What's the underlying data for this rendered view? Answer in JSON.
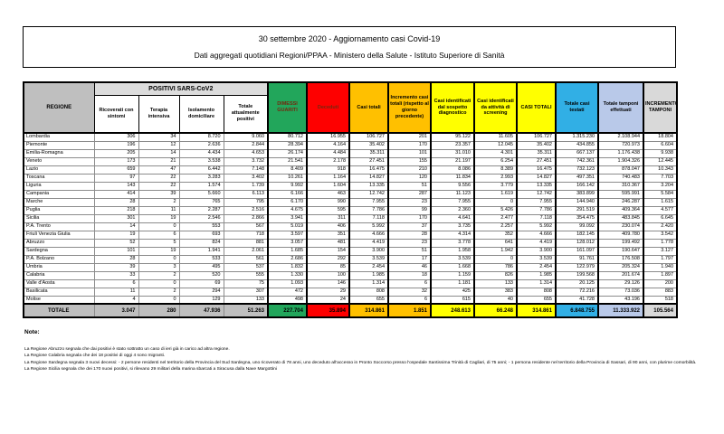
{
  "title": {
    "line1": "30 settembre 2020 - Aggiornamento casi Covid-19",
    "line2": "Dati aggregati quotidiani Regioni/PPAA - Ministero della Salute - Istituto Superiore di Sanità"
  },
  "colors": {
    "header-gray": "#BFBFBF",
    "band-gray": "#DCDCDC",
    "green": "#22A65B",
    "red": "#FE0000",
    "orange": "#FFC000",
    "yellow": "#FFFF00",
    "blue": "#31AFE5",
    "peri": "#B9C9E9",
    "lightgray": "#D9D9D9",
    "dark-red": "#73290F"
  },
  "table": {
    "columns": {
      "regione": "REGIONE",
      "group_positivi": "POSITIVI SARS-CoV2",
      "ricoverati": "Ricoverati con sintomi",
      "terapia": "Terapia intensiva",
      "isolamento": "Isolamento domiciliare",
      "attualmente_positivi": "Totale attualmente positivi",
      "dimessi": "DIMESSI GUARITI",
      "deceduti": "Deceduti",
      "casi_totali": "Casi totali",
      "incremento_casi": "Incremento casi totali (rispetto al giorno precedente)",
      "sospetto": "Casi identificati dal sospetto diagnostico",
      "screening": "Casi identificati da attività di screening",
      "casi_totali_2": "CASI TOTALI",
      "casi_testati": "Totale casi testati",
      "tamponi": "Totale tamponi effettuati",
      "incremento_tamponi": "INCREMENTO TAMPONI"
    },
    "rows": [
      {
        "regione": "Lombardia",
        "values": [
          "306",
          "34",
          "8.720",
          "9.060",
          "80.712",
          "16.955",
          "106.727",
          "201",
          "95.122",
          "11.605",
          "106.727",
          "1.315.230",
          "2.108.944",
          "18.804"
        ]
      },
      {
        "regione": "Piemonte",
        "values": [
          "196",
          "12",
          "2.636",
          "2.844",
          "28.394",
          "4.164",
          "35.402",
          "170",
          "23.357",
          "12.045",
          "35.402",
          "434.855",
          "720.973",
          "6.604"
        ]
      },
      {
        "regione": "Emilia-Romagna",
        "values": [
          "205",
          "14",
          "4.434",
          "4.653",
          "26.174",
          "4.484",
          "35.311",
          "101",
          "31.010",
          "4.301",
          "35.311",
          "667.137",
          "1.176.438",
          "9.938"
        ]
      },
      {
        "regione": "Veneto",
        "values": [
          "173",
          "21",
          "3.538",
          "3.732",
          "21.541",
          "2.178",
          "27.451",
          "155",
          "21.197",
          "6.254",
          "27.451",
          "742.361",
          "1.904.326",
          "12.445"
        ]
      },
      {
        "regione": "Lazio",
        "values": [
          "659",
          "47",
          "6.442",
          "7.148",
          "8.409",
          "918",
          "16.475",
          "210",
          "8.086",
          "8.389",
          "16.475",
          "732.123",
          "878.047",
          "10.343"
        ]
      },
      {
        "regione": "Toscana",
        "values": [
          "97",
          "22",
          "3.283",
          "3.402",
          "10.261",
          "1.164",
          "14.827",
          "120",
          "11.834",
          "2.993",
          "14.827",
          "497.351",
          "740.483",
          "7.703"
        ]
      },
      {
        "regione": "Liguria",
        "values": [
          "143",
          "22",
          "1.574",
          "1.739",
          "9.992",
          "1.604",
          "13.335",
          "51",
          "9.556",
          "3.779",
          "13.335",
          "166.142",
          "310.367",
          "3.204"
        ]
      },
      {
        "regione": "Campania",
        "values": [
          "414",
          "39",
          "5.660",
          "6.113",
          "6.166",
          "463",
          "12.742",
          "287",
          "11.123",
          "1.619",
          "12.742",
          "383.899",
          "595.991",
          "5.584"
        ]
      },
      {
        "regione": "Marche",
        "values": [
          "28",
          "2",
          "765",
          "795",
          "6.170",
          "990",
          "7.955",
          "23",
          "7.955",
          "0",
          "7.955",
          "144.940",
          "246.287",
          "1.615"
        ]
      },
      {
        "regione": "Puglia",
        "values": [
          "218",
          "11",
          "2.287",
          "2.516",
          "4.675",
          "595",
          "7.786",
          "99",
          "2.360",
          "5.426",
          "7.786",
          "291.519",
          "409.364",
          "4.577"
        ]
      },
      {
        "regione": "Sicilia",
        "values": [
          "301",
          "19",
          "2.546",
          "2.866",
          "3.941",
          "311",
          "7.118",
          "170",
          "4.641",
          "2.477",
          "7.118",
          "354.475",
          "483.845",
          "6.645"
        ]
      },
      {
        "regione": "P.A. Trento",
        "values": [
          "14",
          "0",
          "553",
          "567",
          "5.019",
          "406",
          "5.992",
          "37",
          "3.735",
          "2.257",
          "5.992",
          "99.092",
          "230.074",
          "2.420"
        ]
      },
      {
        "regione": "Friuli Venezia Giulia",
        "values": [
          "19",
          "6",
          "693",
          "718",
          "3.597",
          "351",
          "4.666",
          "28",
          "4.314",
          "352",
          "4.666",
          "182.145",
          "409.780",
          "3.542"
        ]
      },
      {
        "regione": "Abruzzo",
        "values": [
          "52",
          "5",
          "824",
          "881",
          "3.057",
          "481",
          "4.419",
          "23",
          "3.778",
          "641",
          "4.419",
          "128.012",
          "199.492",
          "1.778"
        ]
      },
      {
        "regione": "Sardegna",
        "values": [
          "101",
          "19",
          "1.941",
          "2.061",
          "1.685",
          "154",
          "3.900",
          "51",
          "1.958",
          "1.942",
          "3.900",
          "161.097",
          "190.647",
          "3.127"
        ]
      },
      {
        "regione": "P.A. Bolzano",
        "values": [
          "28",
          "0",
          "533",
          "561",
          "2.686",
          "292",
          "3.539",
          "17",
          "3.539",
          "0",
          "3.539",
          "91.761",
          "176.508",
          "1.797"
        ]
      },
      {
        "regione": "Umbria",
        "values": [
          "39",
          "3",
          "495",
          "537",
          "1.832",
          "85",
          "2.454",
          "46",
          "1.668",
          "786",
          "2.454",
          "122.979",
          "205.324",
          "1.940"
        ]
      },
      {
        "regione": "Calabria",
        "values": [
          "33",
          "2",
          "520",
          "555",
          "1.330",
          "100",
          "1.985",
          "18",
          "1.159",
          "826",
          "1.985",
          "199.568",
          "201.674",
          "1.897"
        ]
      },
      {
        "regione": "Valle d'Aosta",
        "values": [
          "6",
          "0",
          "69",
          "75",
          "1.093",
          "146",
          "1.314",
          "6",
          "1.181",
          "133",
          "1.314",
          "20.125",
          "29.126",
          "200"
        ]
      },
      {
        "regione": "Basilicata",
        "values": [
          "11",
          "2",
          "294",
          "307",
          "472",
          "29",
          "808",
          "32",
          "425",
          "383",
          "808",
          "72.216",
          "73.036",
          "883"
        ]
      },
      {
        "regione": "Molise",
        "values": [
          "4",
          "0",
          "129",
          "133",
          "498",
          "24",
          "655",
          "6",
          "615",
          "40",
          "655",
          "41.728",
          "43.196",
          "518"
        ]
      }
    ],
    "totale": {
      "label": "TOTALE",
      "values": [
        "3.047",
        "280",
        "47.936",
        "51.263",
        "227.704",
        "35.894",
        "314.861",
        "1.851",
        "248.613",
        "66.248",
        "314.861",
        "6.848.755",
        "11.333.922",
        "105.564"
      ]
    }
  },
  "notes": {
    "heading": "Note:",
    "lines": [
      "La Regione Abruzzo segnala che dai positivi è stato sottratto un caso di ieri già in carico ad altra regione.",
      "La Regione Calabria segnala che dei 18 positivi di oggi 4 sono migranti.",
      "La Regione Sardegna  segnala 3 nuovi decessi: - 2 persone residenti nel territorio della Provincia del Sud Sardegna, uno ricoverato di 78 anni, uno deceduto all'accesso in Pronto Soccorso presso l'ospedale Santissima Trinità di Cagliari, di 75 anni; - 1 persona residente nel territorio della Provincia di Sassari, di 90 anni, con plurime comorbilità.",
      "La Regione Sicilia segnala che dei 170 nuovi positivi, si rilevano 29 militari della marina sbarcati a Siracusa dalla Nave Margottini"
    ]
  }
}
